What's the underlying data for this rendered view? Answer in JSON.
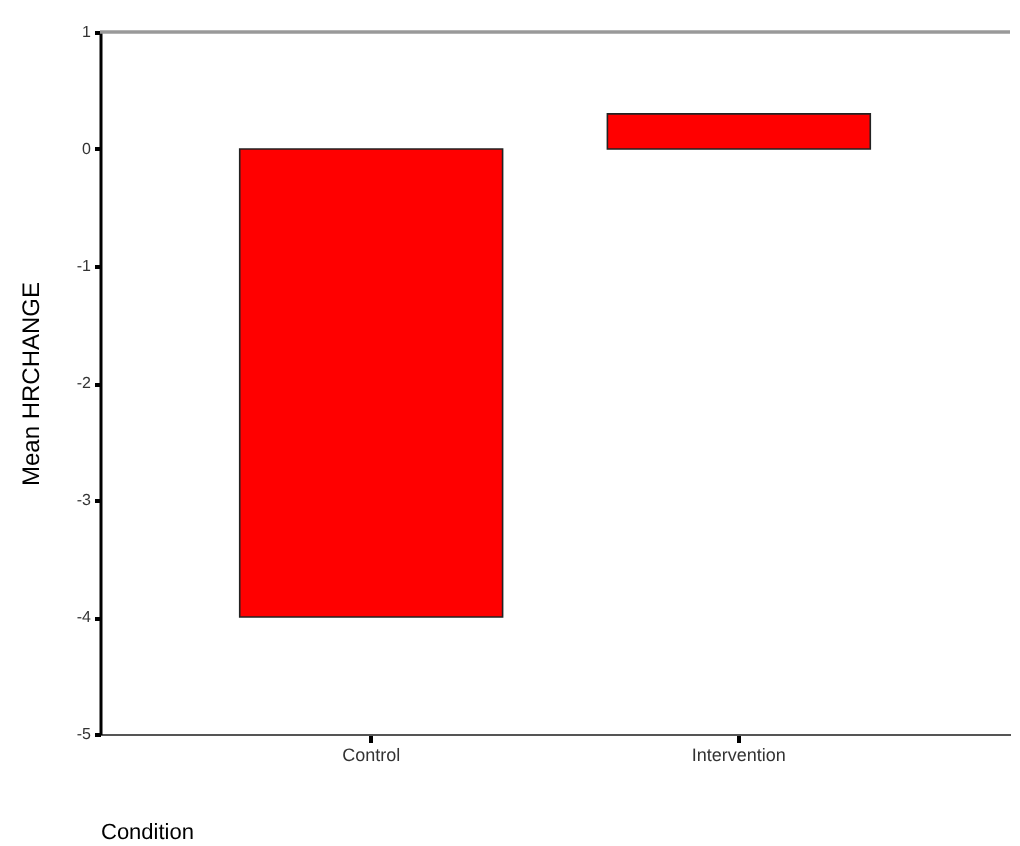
{
  "chart_data": {
    "type": "bar",
    "xlabel": "Condition",
    "ylabel": "Mean HRCHANGE",
    "categories": [
      "Control",
      "Intervention"
    ],
    "values": [
      -4.0,
      0.3
    ],
    "color": "#ff0000",
    "ylim": [
      -5,
      1
    ],
    "yticks": [
      -5,
      -4,
      -3,
      -2,
      -1,
      0,
      1
    ],
    "grid": false
  }
}
